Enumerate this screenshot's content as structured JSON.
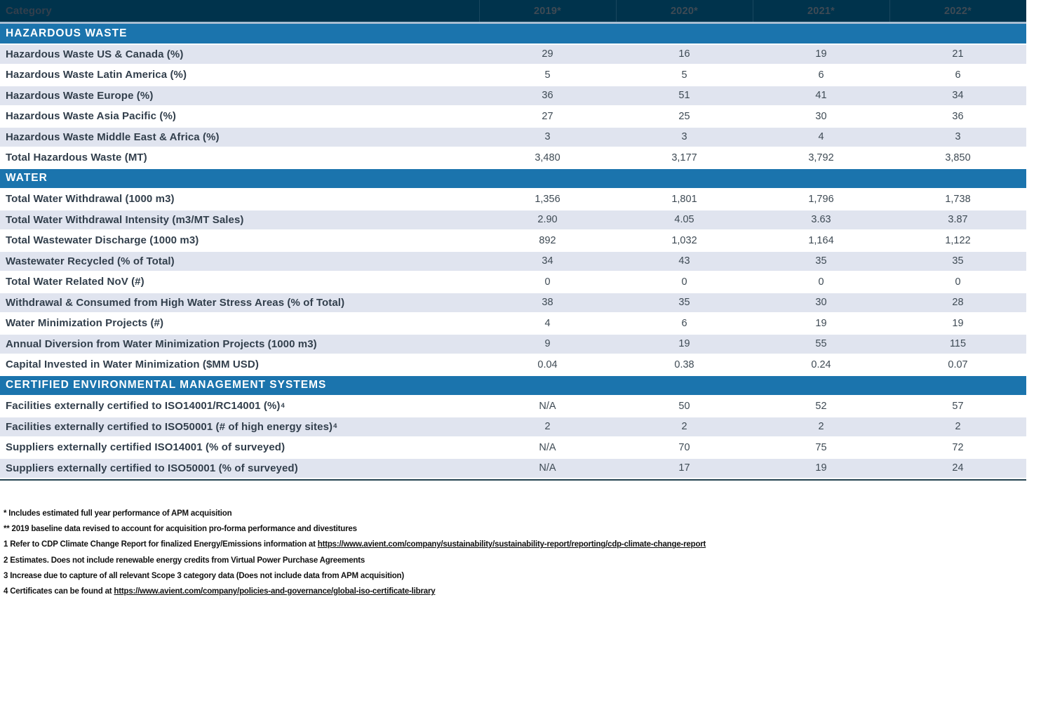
{
  "colors": {
    "navy": "#00334c",
    "blue": "#1b74ad",
    "shaded_row": "#e0e4ef",
    "header_separator": "#a9bdd1",
    "bottom_border": "#24424f",
    "label_text": "#323f4c",
    "value_text": "#3e4a54"
  },
  "table": {
    "columns": [
      "Category",
      "2019*",
      "2020*",
      "2021*",
      "2022*"
    ],
    "sections": [
      {
        "title": "HAZARDOUS WASTE",
        "rows": [
          {
            "label": "Hazardous Waste US & Canada (%)",
            "values": [
              "29",
              "16",
              "19",
              "21"
            ],
            "shaded": true
          },
          {
            "label": "Hazardous Waste Latin America (%)",
            "values": [
              "5",
              "5",
              "6",
              "6"
            ],
            "shaded": false
          },
          {
            "label": "Hazardous Waste Europe (%)",
            "values": [
              "36",
              "51",
              "41",
              "34"
            ],
            "shaded": true
          },
          {
            "label": "Hazardous Waste Asia Pacific (%)",
            "values": [
              "27",
              "25",
              "30",
              "36"
            ],
            "shaded": false
          },
          {
            "label": "Hazardous Waste Middle East & Africa (%)",
            "values": [
              "3",
              "3",
              "4",
              "3"
            ],
            "shaded": true
          },
          {
            "label": "Total Hazardous Waste (MT)",
            "values": [
              "3,480",
              "3,177",
              "3,792",
              "3,850"
            ],
            "shaded": false
          }
        ]
      },
      {
        "title": "WATER",
        "rows": [
          {
            "label": "Total Water Withdrawal (1000 m3)",
            "values": [
              "1,356",
              "1,801",
              "1,796",
              "1,738"
            ],
            "shaded": false
          },
          {
            "label": "Total Water Withdrawal Intensity (m3/MT Sales)",
            "values": [
              "2.90",
              "4.05",
              "3.63",
              "3.87"
            ],
            "shaded": true
          },
          {
            "label": "Total Wastewater Discharge (1000 m3)",
            "values": [
              "892",
              "1,032",
              "1,164",
              "1,122"
            ],
            "shaded": false
          },
          {
            "label": "Wastewater Recycled (% of Total)",
            "values": [
              "34",
              "43",
              "35",
              "35"
            ],
            "shaded": true
          },
          {
            "label": "Total Water Related NoV (#)",
            "values": [
              "0",
              "0",
              "0",
              "0"
            ],
            "shaded": false
          },
          {
            "label": "Withdrawal & Consumed from High Water Stress Areas (% of Total)",
            "values": [
              "38",
              "35",
              "30",
              "28"
            ],
            "shaded": true
          },
          {
            "label": "Water Minimization Projects (#)",
            "values": [
              "4",
              "6",
              "19",
              "19"
            ],
            "shaded": false
          },
          {
            "label": "Annual Diversion from Water Minimization Projects (1000 m3)",
            "values": [
              "9",
              "19",
              "55",
              "115"
            ],
            "shaded": true
          },
          {
            "label": "Capital Invested in Water Minimization ($MM USD)",
            "values": [
              "0.04",
              "0.38",
              "0.24",
              "0.07"
            ],
            "shaded": false
          }
        ]
      },
      {
        "title": "CERTIFIED ENVIRONMENTAL MANAGEMENT SYSTEMS",
        "rows": [
          {
            "label": "Facilities externally certified to ISO14001/RC14001 (%)",
            "sup": "4",
            "values": [
              "N/A",
              "50",
              "52",
              "57"
            ],
            "shaded": false
          },
          {
            "label": "Facilities externally certified to ISO50001 (# of high energy sites)",
            "sup": "4",
            "values": [
              "2",
              "2",
              "2",
              "2"
            ],
            "shaded": true
          },
          {
            "label": "Suppliers externally certified ISO14001 (% of surveyed)",
            "values": [
              "N/A",
              "70",
              "75",
              "72"
            ],
            "shaded": false
          },
          {
            "label": "Suppliers externally certified to ISO50001 (% of surveyed)",
            "values": [
              "N/A",
              "17",
              "19",
              "24"
            ],
            "shaded": true
          }
        ]
      }
    ]
  },
  "footnotes": [
    {
      "text": "* Includes estimated full year performance of APM acquisition"
    },
    {
      "text": "** 2019 baseline data revised to account for acquisition pro-forma performance and divestitures"
    },
    {
      "text": "1 Refer to CDP Climate Change Report for finalized Energy/Emissions information at ",
      "link": "https://www.avient.com/company/sustainability/sustainability-report/reporting/cdp-climate-change-report"
    },
    {
      "text": "2 Estimates. Does not include renewable energy credits from Virtual Power Purchase Agreements"
    },
    {
      "text": "3 Increase due to capture of all relevant Scope 3 category data (Does not include data from APM acquisition)"
    },
    {
      "text": "4 Certificates can be found at ",
      "link": "https://www.avient.com/company/policies-and-governance/global-iso-certificate-library"
    }
  ]
}
